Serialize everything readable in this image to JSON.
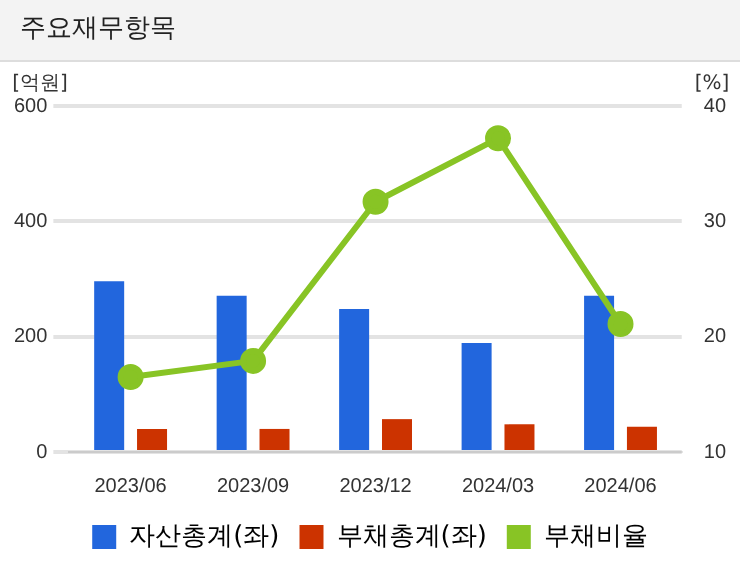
{
  "chart_data": {
    "type": "bar",
    "title": "주요재무항목",
    "ylabel": "[억원]",
    "y2label": "[%]",
    "categories": [
      "2023/06",
      "2023/09",
      "2023/12",
      "2024/03",
      "2024/06"
    ],
    "series": [
      {
        "name": "자산총계(좌)",
        "color": "#2266dd",
        "values": [
          296,
          271,
          248,
          189,
          271
        ]
      },
      {
        "name": "부채총계(좌)",
        "color": "#cc3300",
        "values": [
          40,
          40,
          57,
          48,
          44
        ]
      },
      {
        "name": "부채비율",
        "type": "line",
        "axis": "y2",
        "color": "#88c425",
        "values": [
          16.5,
          17.9,
          31.7,
          37.2,
          21.1
        ]
      }
    ],
    "ylim": [
      0,
      600
    ],
    "yticks": [
      0,
      200,
      400,
      600
    ],
    "y2lim": [
      10,
      40
    ],
    "y2ticks": [
      10,
      20,
      30,
      40
    ],
    "grid": "y",
    "legend": "bottom",
    "marker": "circle"
  }
}
